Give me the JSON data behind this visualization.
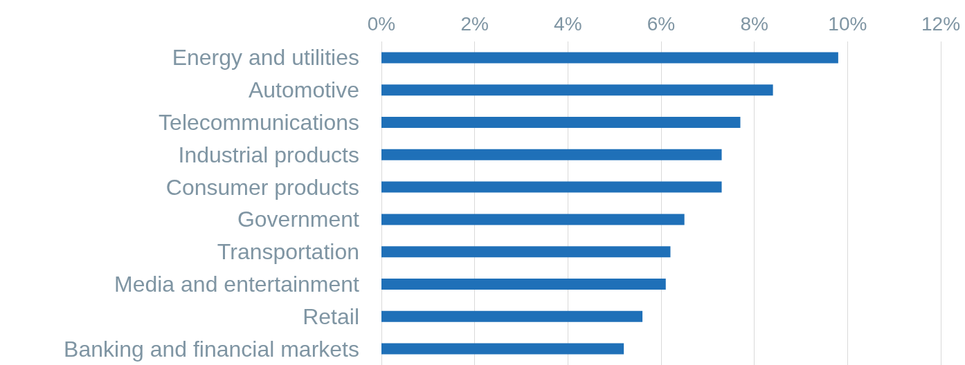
{
  "chart_data": {
    "type": "bar",
    "orientation": "horizontal",
    "categories": [
      "Energy and utilities",
      "Automotive",
      "Telecommunications",
      "Industrial products",
      "Consumer products",
      "Government",
      "Transportation",
      "Media and entertainment",
      "Retail",
      "Banking and financial markets"
    ],
    "values": [
      9.8,
      8.4,
      7.7,
      7.3,
      7.3,
      6.5,
      6.2,
      6.1,
      5.6,
      5.2
    ],
    "color": "#1f70b8",
    "xlim": [
      0,
      12
    ],
    "xticks": [
      {
        "value": 0,
        "label": "0%"
      },
      {
        "value": 2,
        "label": "2%"
      },
      {
        "value": 4,
        "label": "4%"
      },
      {
        "value": 6,
        "label": "6%"
      },
      {
        "value": 8,
        "label": "8%"
      },
      {
        "value": 10,
        "label": "10%"
      },
      {
        "value": 12,
        "label": "12%"
      }
    ],
    "grid": "x"
  }
}
